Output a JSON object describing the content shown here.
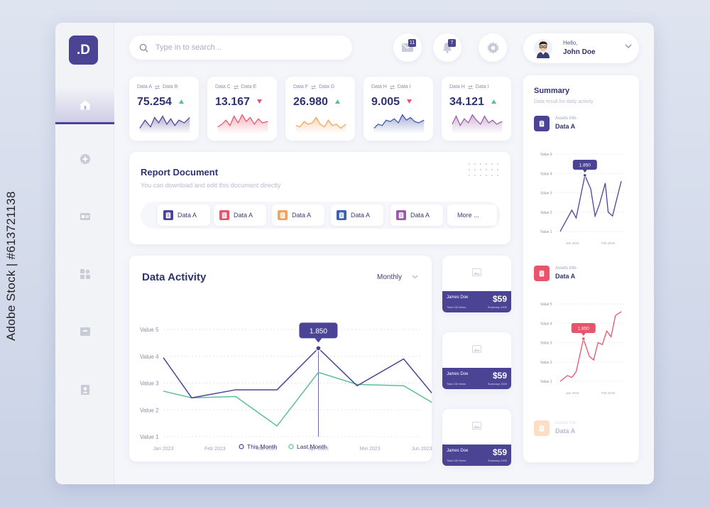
{
  "watermark": {
    "side_text": "Adobe Stock | #613721138"
  },
  "brand": {
    "logo": ".D"
  },
  "search": {
    "placeholder": "Type in to search .."
  },
  "header": {
    "mail_count": "11",
    "notif_count": "7",
    "hello": "Hello,",
    "user_name": "John Doe"
  },
  "stats": [
    {
      "label_a": "Data A",
      "label_b": "Data B",
      "value": "75.254",
      "trend": "up",
      "color": "#4b4495"
    },
    {
      "label_a": "Data C",
      "label_b": "Data E",
      "value": "13.167",
      "trend": "down",
      "color": "#e8556b"
    },
    {
      "label_a": "Data F",
      "label_b": "Data G",
      "value": "26.980",
      "trend": "up",
      "color": "#f5a35a"
    },
    {
      "label_a": "Data H",
      "label_b": "Data I",
      "value": "9.005",
      "trend": "down",
      "color": "#3a4fa8"
    },
    {
      "label_a": "Data H",
      "label_b": "Data I",
      "value": "34.121",
      "trend": "up",
      "color": "#9b5aa8"
    }
  ],
  "report": {
    "title": "Report Document",
    "subtitle": "You can download and edit this document directly",
    "docs": [
      {
        "label": "Data A",
        "color": "#4b4495"
      },
      {
        "label": "Data A",
        "color": "#e8556b"
      },
      {
        "label": "Data A",
        "color": "#f5a35a"
      },
      {
        "label": "Data A",
        "color": "#3a5fb0"
      },
      {
        "label": "Data A",
        "color": "#9b5aa8"
      }
    ],
    "more": "More ..."
  },
  "activity": {
    "title": "Data Activity",
    "period": "Monthly",
    "tooltip": "1.850",
    "chart_data": {
      "type": "line",
      "x": [
        "Jan 2023",
        "Feb 2023",
        "Mar 2023",
        "Apr 2023",
        "Mei 2023",
        "Jun 2023"
      ],
      "y_ticks": [
        "Value 1",
        "Value 2",
        "Value 3",
        "Value 4",
        "Value 5"
      ],
      "ylim": [
        1,
        5
      ],
      "series": [
        {
          "name": "This Month",
          "color": "#4b4495",
          "points": [
            [
              0,
              3.95
            ],
            [
              0.55,
              2.45
            ],
            [
              1.4,
              2.75
            ],
            [
              2.2,
              2.75
            ],
            [
              3,
              4.3
            ],
            [
              3.75,
              2.9
            ],
            [
              4.65,
              3.9
            ],
            [
              5.4,
              2.15
            ]
          ]
        },
        {
          "name": "Last Month",
          "color": "#5bbf98",
          "points": [
            [
              0,
              2.7
            ],
            [
              0.55,
              2.45
            ],
            [
              1.4,
              2.5
            ],
            [
              2.2,
              1.4
            ],
            [
              3,
              3.4
            ],
            [
              3.75,
              2.95
            ],
            [
              4.65,
              2.9
            ],
            [
              5.4,
              2.05
            ]
          ]
        }
      ]
    }
  },
  "payments": [
    {
      "name": "James Doe",
      "amount": "$59",
      "total": "Total 100 Items",
      "summary": "Summary 1000"
    },
    {
      "name": "James Doe",
      "amount": "$59",
      "total": "Total 100 Items",
      "summary": "Summary 1000"
    },
    {
      "name": "James Doe",
      "amount": "$59",
      "total": "Total 100 Items",
      "summary": "Summary 1000"
    }
  ],
  "summary": {
    "title": "Summary",
    "subtitle": "Data result for daily activity",
    "assets": [
      {
        "info": "Assets Info",
        "name": "Data A",
        "color": "#4b4495"
      },
      {
        "info": "Assets Info",
        "name": "Data A",
        "color": "#e8556b"
      },
      {
        "info": "Assets Info",
        "name": "Data A",
        "color": "#f5a35a"
      }
    ],
    "charts": [
      {
        "tooltip": "1.850",
        "color": "#4b4495",
        "x_labels": [
          "Jan 2019",
          "Feb 2019"
        ],
        "y_labels": [
          "Value 1",
          "Value 2",
          "Value 3",
          "Value 4",
          "Value 5"
        ],
        "points": [
          [
            0,
            1
          ],
          [
            0.8,
            2.1
          ],
          [
            1.1,
            1.7
          ],
          [
            1.7,
            3.9
          ],
          [
            2.1,
            3.2
          ],
          [
            2.4,
            1.8
          ],
          [
            2.7,
            2.4
          ],
          [
            3.1,
            3.5
          ],
          [
            3.3,
            2.0
          ],
          [
            3.6,
            1.8
          ],
          [
            4.2,
            3.6
          ]
        ]
      },
      {
        "tooltip": "1.850",
        "color": "#e8556b",
        "x_labels": [
          "Jan 2019",
          "Feb 2019"
        ],
        "y_labels": [
          "Value 1",
          "Value 2",
          "Value 3",
          "Value 4",
          "Value 5"
        ],
        "points": [
          [
            0,
            1
          ],
          [
            0.5,
            1.3
          ],
          [
            0.8,
            1.2
          ],
          [
            1.1,
            1.5
          ],
          [
            1.6,
            3.2
          ],
          [
            2.0,
            2.3
          ],
          [
            2.3,
            2.1
          ],
          [
            2.6,
            3.0
          ],
          [
            2.9,
            2.9
          ],
          [
            3.2,
            3.6
          ],
          [
            3.5,
            3.3
          ],
          [
            3.8,
            4.4
          ],
          [
            4.2,
            4.6
          ]
        ]
      }
    ]
  }
}
